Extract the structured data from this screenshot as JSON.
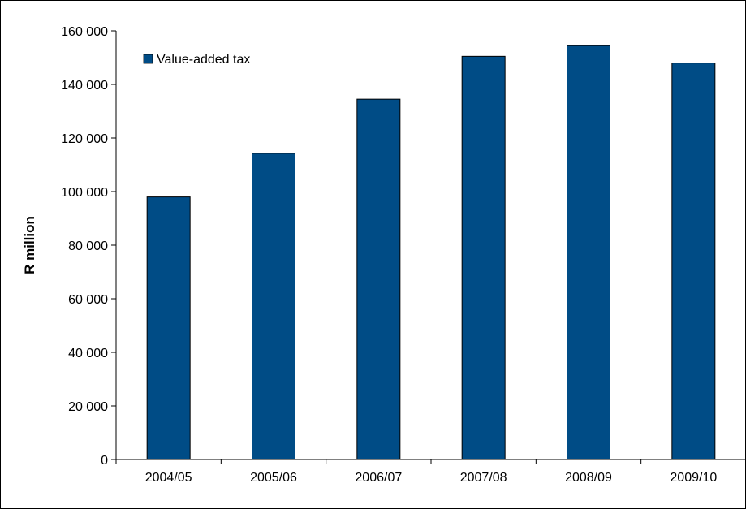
{
  "chart_data": {
    "type": "bar",
    "title": "",
    "xlabel": "",
    "ylabel": "R million",
    "categories": [
      "2004/05",
      "2005/06",
      "2006/07",
      "2007/08",
      "2008/09",
      "2009/10"
    ],
    "series": [
      {
        "name": "Value-added tax",
        "values": [
          98000,
          114300,
          134500,
          150500,
          154500,
          148000
        ],
        "color": "#004C86"
      }
    ],
    "ylim": [
      0,
      160000
    ],
    "yticks": [
      0,
      20000,
      40000,
      60000,
      80000,
      100000,
      120000,
      140000,
      160000
    ],
    "ytick_labels": [
      "0",
      "20 000",
      "40 000",
      "60 000",
      "80 000",
      "100 000",
      "120 000",
      "140 000",
      "160 000"
    ],
    "grid": false,
    "legend_position": "top-left"
  }
}
